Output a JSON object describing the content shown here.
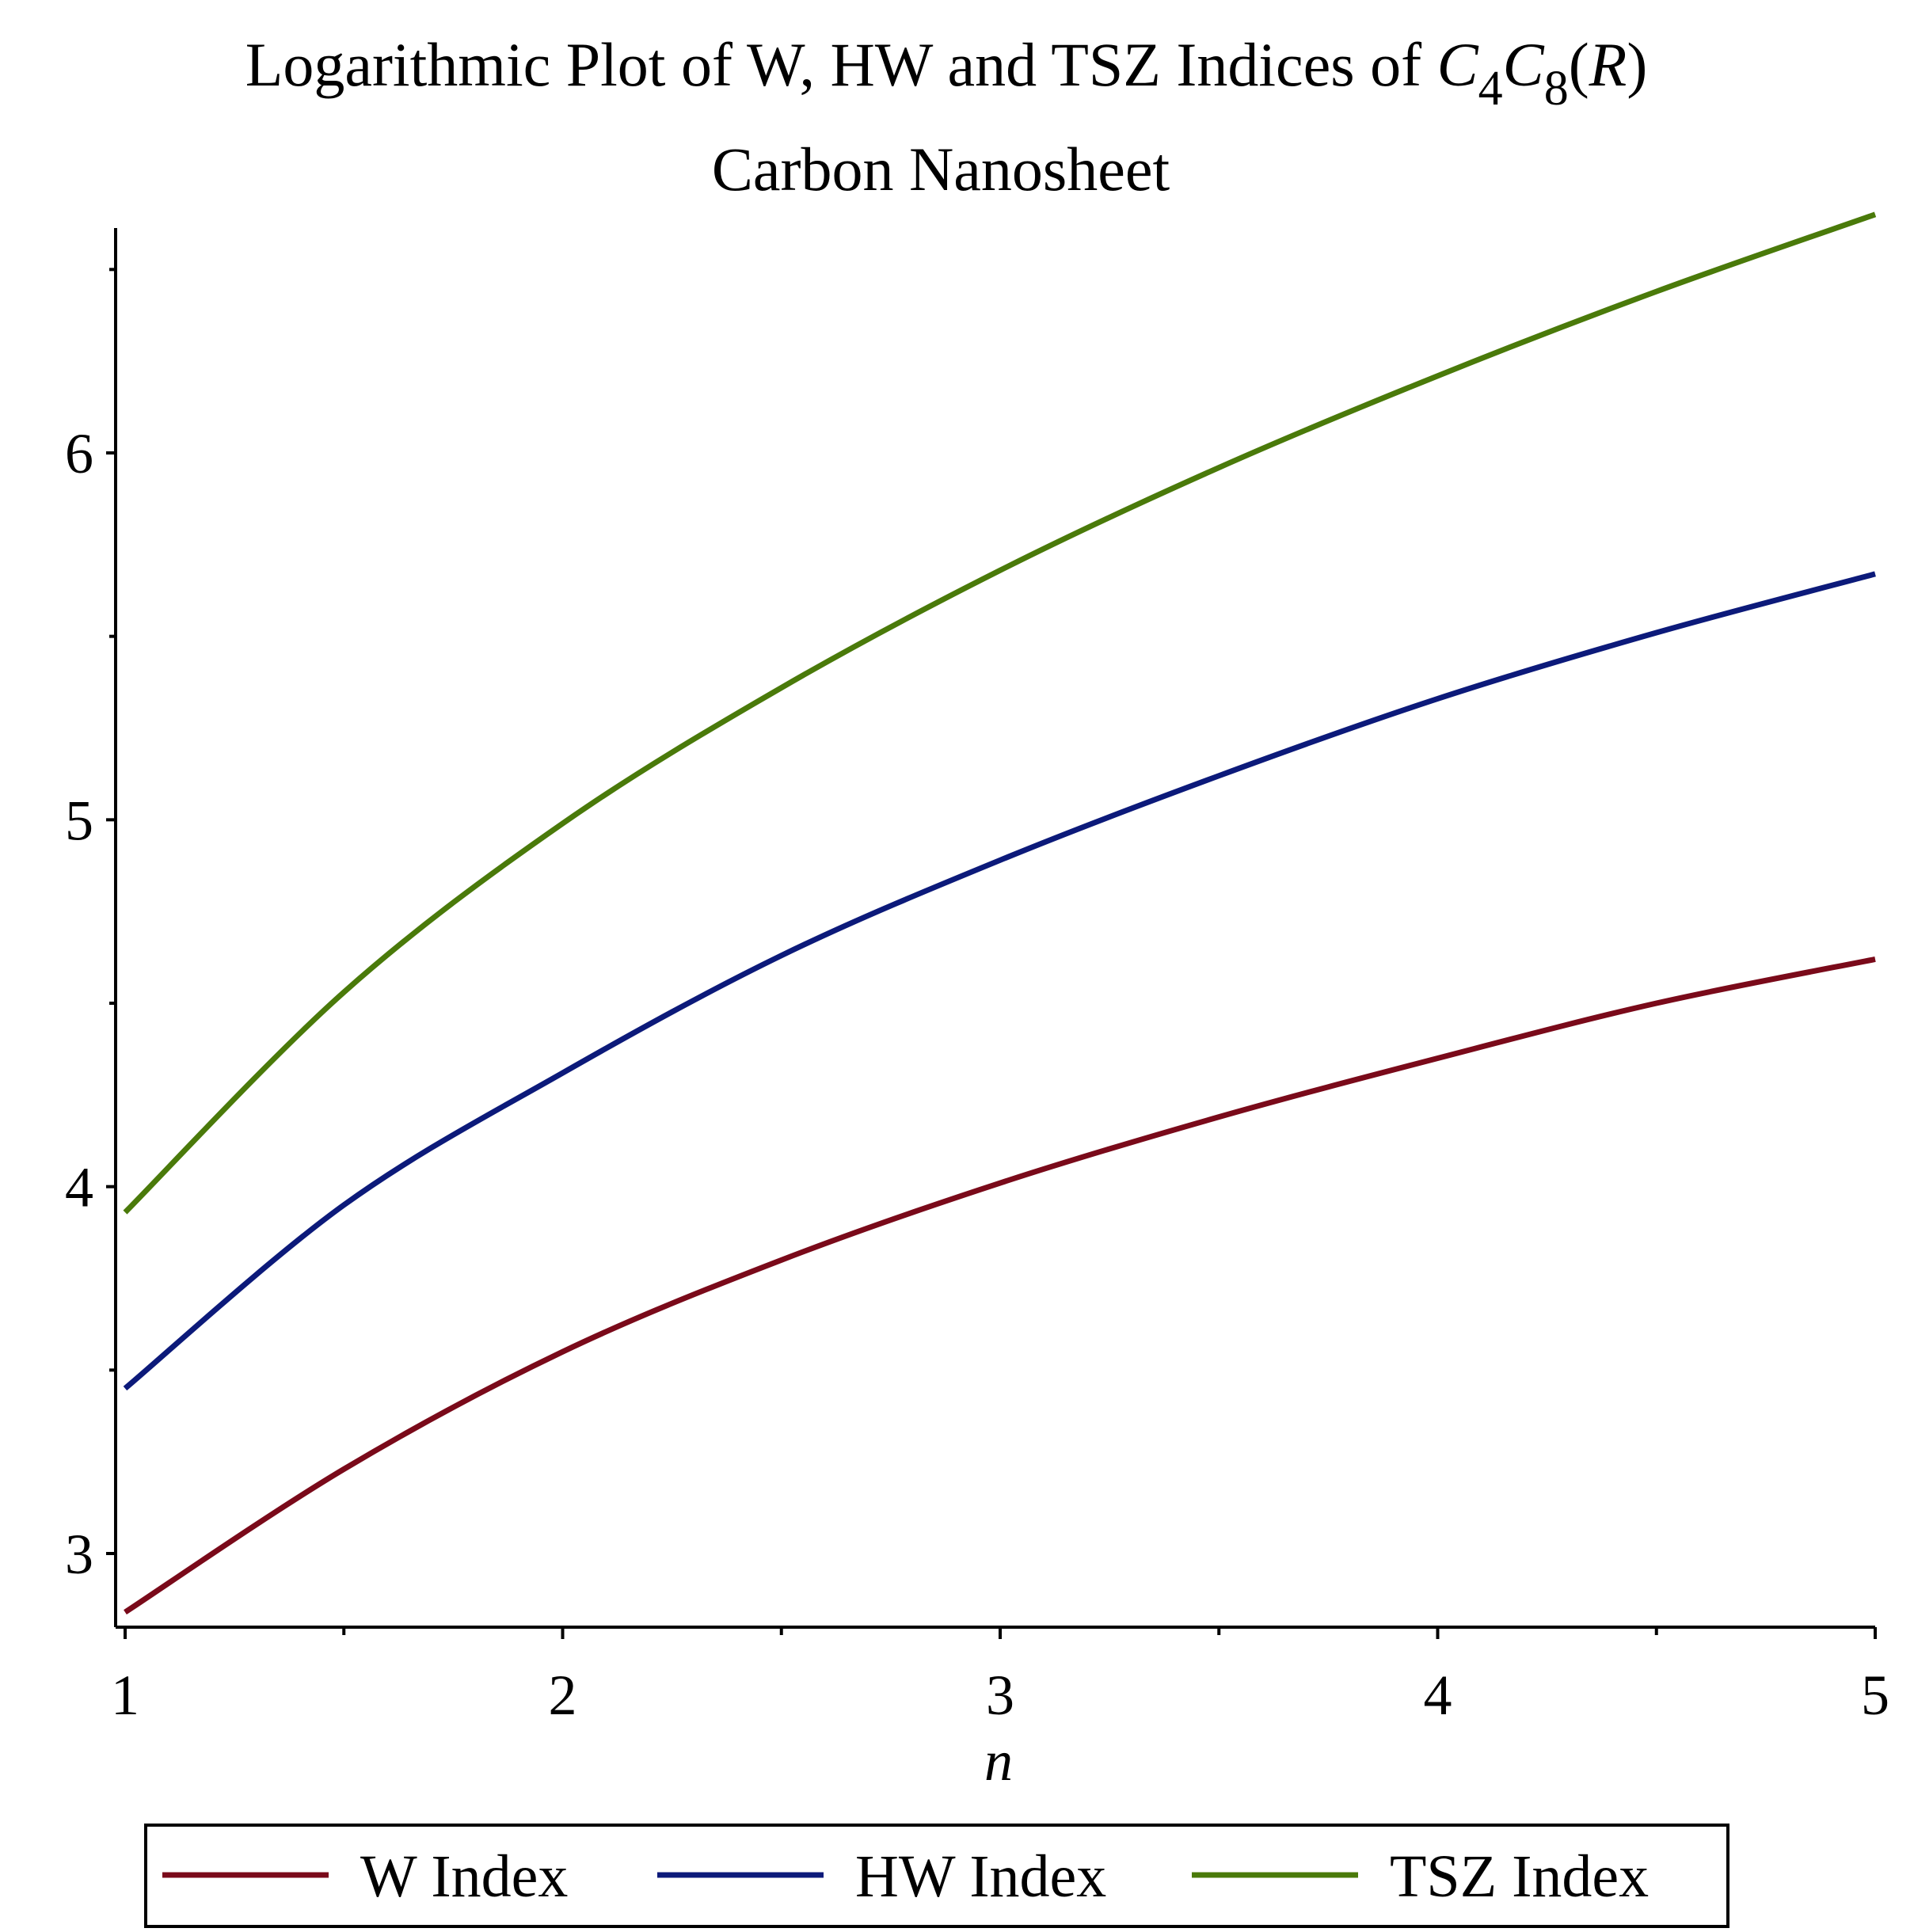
{
  "chart_data": {
    "type": "line",
    "title": {
      "line1_prefix": "Logarithmic Plot of W, HW and TSZ Indices of ",
      "math": {
        "c1": "C",
        "sub1": "4",
        "c2": "C",
        "sub2": "8",
        "paren_open": "(",
        "r": "R",
        "paren_close": ")"
      },
      "line2": "Carbon Nanosheet"
    },
    "xlabel": "n",
    "ylabel": "",
    "xlim": [
      1,
      5
    ],
    "ylim": [
      2.82,
      6.62
    ],
    "x_ticks": [
      1,
      2,
      3,
      4,
      5
    ],
    "x_tick_labels": [
      "1",
      "2",
      "3",
      "4",
      "5"
    ],
    "x_minor_ticks": [
      1.5,
      2.5,
      3.5,
      4.5
    ],
    "y_ticks": [
      3,
      4,
      5,
      6
    ],
    "y_tick_labels": [
      "3",
      "4",
      "5",
      "6"
    ],
    "y_minor_ticks": [
      3.5,
      4.5,
      5.5,
      6.5
    ],
    "grid": false,
    "legend_position": "bottom",
    "series": [
      {
        "name": "W Index",
        "color": "#7a0a1a",
        "x": [
          1,
          1.5,
          2,
          2.5,
          3,
          3.5,
          4,
          4.5,
          5
        ],
        "values": [
          2.84,
          3.23,
          3.55,
          3.8,
          4.01,
          4.19,
          4.35,
          4.5,
          4.62
        ]
      },
      {
        "name": "HW Index",
        "color": "#0c1a7a",
        "x": [
          1,
          1.5,
          2,
          2.5,
          3,
          3.5,
          4,
          4.5,
          5
        ],
        "values": [
          3.45,
          3.95,
          4.31,
          4.63,
          4.89,
          5.12,
          5.33,
          5.51,
          5.67
        ]
      },
      {
        "name": "TSZ Index",
        "color": "#4a7a0a",
        "x": [
          1,
          1.5,
          2,
          2.5,
          3,
          3.5,
          4,
          4.5,
          5
        ],
        "values": [
          3.93,
          4.53,
          4.99,
          5.36,
          5.68,
          5.96,
          6.21,
          6.44,
          6.65
        ]
      }
    ]
  }
}
